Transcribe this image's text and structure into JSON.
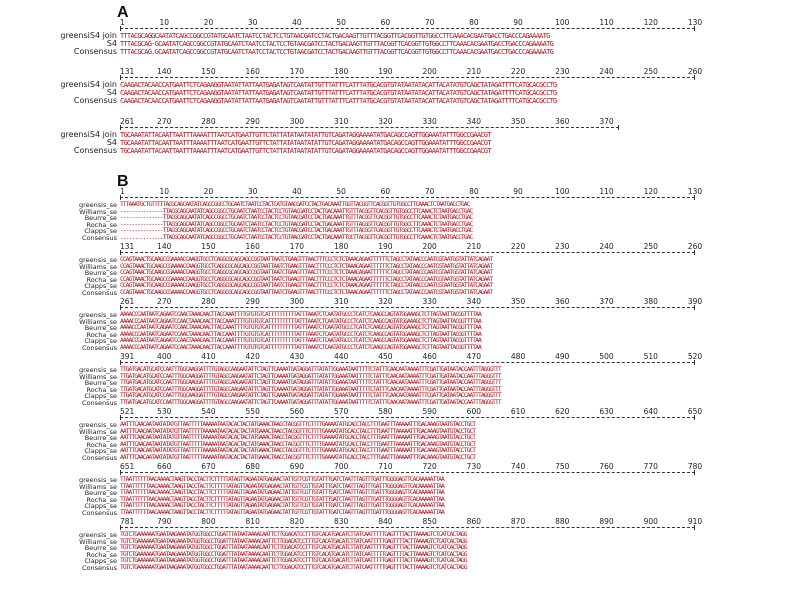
{
  "panels": [
    {
      "label": "A",
      "blocks": [
        {
          "ticks": [
            "1",
            "10",
            "20",
            "30",
            "40",
            "50",
            "60",
            "70",
            "80",
            "90",
            "100",
            "110",
            "120",
            "130"
          ],
          "rows": [
            {
              "name": "greensiS4 join",
              "seq": "TTTACGCAGGCAATATCAGCCGGCCGTATGCAATCTAATCCTACTCCTGTAACGATCCTACTGACAAGTTGTTTACGGTTCACGGTTGTGGCCTTCAAACACGAATGACCTGACCCAGAAAATG"
            },
            {
              "name": "S4",
              "seq": "TTTACGCAG-GCAATATCAGCCGGCCGTATGCAATCTAATCCTACTCCTGTAACGATCCTACTGACAAGTTGTTTACGGTTCACGGTTGTGGCCTTCAAACACGAATGACCTGACCCAGAAAATG"
            },
            {
              "name": "Consensus",
              "seq": "TTTACGCAG.GCAATATCAGCCGGCCGTATGCAATCTAATCCTACTCCTGTAACGATCCTACTGACAAGTTGTTTACGGTTCACGGTTGTGGCCTTCAAACACGAATGACCTGACCCAGAAAATG"
            }
          ]
        },
        {
          "ticks": [
            "131",
            "140",
            "150",
            "160",
            "170",
            "180",
            "190",
            "200",
            "210",
            "220",
            "230",
            "240",
            "250",
            "260"
          ],
          "rows": [
            {
              "name": "greensiS4 join",
              "seq": "CAAGACTACAACCATGAATTCTCAGAAGGTAATATTATTAATGAGATAGTCAATATTGTTTATTTCATTTATGCACGTGTATAATATACATTACATATGTCAGCTATAGATTTTCATGCACGCCTG"
            },
            {
              "name": "S4",
              "seq": "CAAGACTACAACCATGAATTCTCAGAAGGTAATATTATTAATGAGATAGTCAATATTGTTTATTTCATTTATGCACGTGTATAATATACATTACATATGTCAGCTATAGATTTTCATGCACGCCTG"
            },
            {
              "name": "Consensus",
              "seq": "CAAGACTACAACCATGAATTCTCAGAAGGTAATATTATTAATGAGATAGTCAATATTGTTTATTTCATTTATGCACGTGTATAATATACATTACATATGTCAGCTATAGATTTTCATGCACGCCTG"
            }
          ]
        },
        {
          "ticks": [
            "261",
            "270",
            "280",
            "290",
            "300",
            "310",
            "320",
            "330",
            "340",
            "350",
            "360",
            "370"
          ],
          "rows": [
            {
              "name": "greensiS4 join",
              "seq": "TGCAAATATTACAATTAATTTAAAATTTAATCATGAATTGTTCTATTATATAATATATTGTCAGATAGGAAAATATGACAGCCAGTTGGAAATATTTGGCCGAACGT"
            },
            {
              "name": "S4",
              "seq": "TGCAAATATTACAATTAATTTAAAATTTAATCATGAATTGTTCTATTATATAATATATTGTCAGATAGGAAAATATGACAGCCAGTTGGAAATATTTGGCCGAACGT"
            },
            {
              "name": "Consensus",
              "seq": "TGCAAATATTACAATTAATTTAAAATTTAATCATGAATTGTTCTATTATATAATATATTGTCAGATAGGAAAATATGACAGCCAGTTGGAAATATTTGGCCGAACGT"
            }
          ]
        }
      ]
    },
    {
      "label": "B",
      "blocks": [
        {
          "ticks": [
            "1",
            "10",
            "20",
            "30",
            "40",
            "50",
            "60",
            "70",
            "80",
            "90",
            "100",
            "110",
            "120",
            "130"
          ],
          "rows": [
            {
              "name": "greensis_se",
              "seq": "TTTAAATGCTGTTTTTACGCAGCAATATCAGCCGGCCTGCAATCTAATCCTACTCATGTAACGATCCTACTGACAAATTGGTTACGGTTCACGGTTGTGGCCTTCAAACTCTAATGACCTGAC"
            },
            {
              "name": "Williams_se",
              "seq": "---------------TTACGCAGCAATATCAGCCGGCCTGCAATCTAATCCTACTCCTGTAACGATCCTACTGACAAATTGTTTACGGTTCACGGTTGTGGCCTTCAAACTCTAATGACCTGAC"
            },
            {
              "name": "Beurre_se",
              "seq": "---------------TTACGCAGCAATATCAGCCGGCCTGCAATCTAATCCTACTCCTGTAACGATCCTACTGACAAATTGTTTACGGTTCACGGTTGTGGCCTTCAAACTCTAATGACCTGAC"
            },
            {
              "name": "Rocha_se",
              "seq": "---------------TTACGCAGCAATATCAGCCGGCCTGCAATCTAATCCTACTCCTGTAACGATCCTACTGACAAATTGTTTACGGTTCACGGTTGTGGCCTTCAAACTCTAATGACCTGAC"
            },
            {
              "name": "Clapps_se",
              "seq": "---------------TTACGCAGCAATATCAGCCGGCCTGCAATCTAATCCTACTCCTGTAACGATCCTACTGACAAATTGTTTACGGTTCACGGTTGTGGCCTTCAAACTCTAATGACCTGAC"
            },
            {
              "name": "Consensus",
              "seq": "...............TTACGCAGCAATATCAGCCGGCCTGCAATCTAATCCTACTCcTGTAACGATCCTACTGACAAATTGtTTACGGTTCACGGTTGTGGCCTTCAAACTCTAATGACCTGAC"
            }
          ]
        },
        {
          "ticks": [
            "131",
            "140",
            "150",
            "160",
            "170",
            "180",
            "190",
            "200",
            "210",
            "220",
            "230",
            "240",
            "250",
            "260"
          ],
          "rows": [
            {
              "name": "greensis_se",
              "seq": "CCAGTAAACTGCAAGCCGAAAACCAAGGTGCCTCAGGCGCAGCAGCCGGTAATTAATCTGAAGTTTAACTTTCCCTCTCTAAACAGAATTTTTTCTAGCCTATAACCCAATCGTAATGGTATTATCAGAAT"
            },
            {
              "name": "Williams_se",
              "seq": "CCAGTAAACTGCAAGCCGAAAACCAAGGTGCCTCAGGCGCAGCAGCCGGTAATTAATCTGAAGTTTAACTTTCCCTCTCTAAACAGAATTTTTTCTAGCCTATAACCCAATCGTAATGGTATTATCAGAAT"
            },
            {
              "name": "Beurre_se",
              "seq": "CCAGTAAACTGCAAGCCGAAAACCAAGGTGCCTCAGGCGCAGCAGCCGGTAATTAATCTGAAGTTTAACTTTCCCTCTCTAAACAGAATTTTTTCTAGCCTATAACCCAATCGTAATGGTATTATCAGAAT"
            },
            {
              "name": "Rocha_se",
              "seq": "CCAGTAAACTGCAAGCCGAAAACCAAGGTGCCTCAGGCGCAGCAGCCGGTAATTAATCTGAAGTTTAACTTTCCCTCTCTAAACAGAATTTTTTCTAGCCTATAACCCAATCGTAATGGTATTATCAGAAT"
            },
            {
              "name": "Clapps_se",
              "seq": "CCAGTAAACTGCAAGCCGAAAACCAAGGTGCCTCAGGCGCAGCAGCCGGTAATTAATCTGAAGTTTAACTTTCCCTCTCTAAACAGAATTTTTTCTAGCCTATAACCCAATCGTAATGGTATTATCAGAAT"
            },
            {
              "name": "Consensus",
              "seq": "CCAGTAAACTGCAAGCCGAAAACCAAGGTGCCTCAGGCGCAGCAGCCGGTAATTAATCTGAAGTTTAACTTTCCCTCTCTAAACAGAATTTTTTCTAGCCTATAACCCAATCGTAATGGTATTATCAGAAT"
            }
          ]
        },
        {
          "ticks": [
            "261",
            "270",
            "280",
            "290",
            "300",
            "310",
            "320",
            "330",
            "340",
            "350",
            "360",
            "370",
            "380",
            "390"
          ],
          "rows": [
            {
              "name": "greensis_se",
              "seq": "AAAACCCAATAATCAGAATCCAACTAAACAACTTACCAAATTTTGTGTGTCATTTTTTTTTTATTTAAATCTCAATATGCCCTCATCTCAAGCCAGTATGGAAAGCTCTTAGTAATTACGGTTTTAA"
            },
            {
              "name": "Williams_se",
              "seq": "AAAACCCAATAATCAGAATCCAACTAAACAACTTACCAAATTTTGTGTGTCATTTTTTTTTTATTTAAATCTCAATATGCCCTCATCTCAAGCCAGTATGGAAAGCTCTTAGTAATTACGGTTTTAA"
            },
            {
              "name": "Beurre_se",
              "seq": "AAAACCCAATAATCAGAATCCAACTAAACAACTTACCAAATTTTGTGTGTCATTTTTTTTTTATTTAAATCTCAATATGCCCTCATCTCAAGCCAGTATGGAAAGCTCTTAGTAATTACGGTTTTAA"
            },
            {
              "name": "Rocha_se",
              "seq": "AAAACCCAATAATCAGAATCCAACTAAACAACTTACCAAATTTTGTGTGTCATTTTTTTTTTATTTAAATCTCAATATGCCCTCATCTCAAGCCAGTATGGAAAGCTCTTAGTAATTACGGTTTTAA"
            },
            {
              "name": "Clapps_se",
              "seq": "AAAACCCAATAATCAGAATCCAACTAAACAACTTACCAAATTTTGTGTGTCATTTTTTTTTTATTTAAATCTCAATATGCCCTCATCTCAAGCCAGTATGGAAAGCTCTTAGTAATTACGGTTTTAA"
            },
            {
              "name": "Consensus",
              "seq": "AAAACCCAATAATCAGAATCCAACTAAACAACTTACCAAATTTTGTGTGTCATTTTTTTTTTATTTAAATCTCAATATGCCCTCATCTCAAGCCAGTATGGAAAGCTCTTAGTAATTACGGTTTTAA"
            }
          ]
        },
        {
          "ticks": [
            "391",
            "400",
            "410",
            "420",
            "430",
            "440",
            "450",
            "460",
            "470",
            "480",
            "490",
            "500",
            "510",
            "520"
          ],
          "rows": [
            {
              "name": "greensis_se",
              "seq": "TTGATGACATGCATCCAATTTGGCAAGGATTTTGTAGCCAAGAATATTCTAGTTCAAAATGATAGGATTTATATTGGAAATAATTTTTCTATTTCAACAATAAAATTTCGATTGATAATACCAATTTAGGGTTT"
            },
            {
              "name": "Williams_se",
              "seq": "TTGATGACATGCATCCAATTTGGCAAGGATTTTGTAGCCAAGAATATTCTAGTTCAAAATGATAGGATTTATATTGGAAATAATTTTTCTATTTCAACAATAAAATTTCGATTGATAATACCAATTTAGGGTTT"
            },
            {
              "name": "Beurre_se",
              "seq": "TTGATGACATGCATCCAATTTGGCAAGGATTTTGTAGCCAAGAATATTCTAGTTCAAAATGATAGGATTTATATTGGAAATAATTTTTCTATTTCAACAATAAAATTTCGATTGATAATACCAATTTAGGGTTT"
            },
            {
              "name": "Rocha_se",
              "seq": "TTGATGACATGCATCCAATTTGGCAAGGATTTTGTAGCCAAGAATATTCTAGTTCAAAATGATAGGATTTATATTGGAAATAATTTTTCTATTTCAACAATAAAATTTCGATTGATAATACCAATTTAGGGTTT"
            },
            {
              "name": "Clapps_se",
              "seq": "TTGATGACATGCATCCAATTTGGCAAGGATTTTGTAGCCAAGAATATTCTAGTTCAAAATGATAGGATTTATATTGGAAATAATTTTTCTATTTCAACAATAAAATTTCGATTGATAATACCAATTTAGGGTTT"
            },
            {
              "name": "Consensus",
              "seq": "TTGATGACATGCATCCAATTTGGCAAGGATTTTGTAGCCAAGAATATTCTAGTTCAAAATGATAGGATTTATATTGGAAATAATTTTTCTATTTCAACAATAAAATTTCGATTGATAATACCAATTTAGGGTTT"
            }
          ]
        },
        {
          "ticks": [
            "521",
            "530",
            "540",
            "550",
            "560",
            "570",
            "580",
            "590",
            "600",
            "610",
            "620",
            "630",
            "640",
            "650"
          ],
          "rows": [
            {
              "name": "greensis_se",
              "seq": "AATTTCAACAATAATATATGTTAATTTTTAAAAATAATACACTACTATGAAACTAACCTACGGTTTCTTTTGAAAATATGCACCTACCTTTGAATTTAAAAATTTGACAAAGTAATGTACCTGCT"
            },
            {
              "name": "Williams_se",
              "seq": "AATTTCAACAATAATATATGTTAATTTTTAAAAATAATACACTACTATGAAACTAACCTACGGTTTCTTTTGAAAATATGCACCTACCTTTGAATTTAAAAATTTGACAAAGTAATGTACCTGCT"
            },
            {
              "name": "Beurre_se",
              "seq": "AATTTCAACAATAATATATGTTAATTTTTAAAAATAATACACTACTATGAAACTAACCTACGGTTTCTTTTGAAAATATGCACCTACCTTTGAATTTAAAAATTTGACAAAGTAATGTACCTGCT"
            },
            {
              "name": "Rocha_se",
              "seq": "AATTTCAACAATAATATATGTTAATTTTTAAAAATAATACACTACTATGAAACTAACCTACGGTTTCTTTTGAAAATATGCACCTACCTTTGAATTTAAAAATTTGACAAAGTAATGTACCTGCT"
            },
            {
              "name": "Clapps_se",
              "seq": "AATTTCAACAATAATATATGTTAATTTTTAAAAATAATACACTACTATGAAACTAACCTACGGTTTCTTTTGAAAATATGCACCTACCTTTGAATTTAAAAATTTGACAAAGTAATGTACCTGCT"
            },
            {
              "name": "Consensus",
              "seq": "AATTTCAACAATAATATATGTTAATTTTTAAAAATAATACACTACTATGAAACTAACCTACGGTTTCTTTTGAAAATATGCACCTACCTTTGAATTTAAAAATTTGACAAAGTAATGTACCTGCT"
            }
          ]
        },
        {
          "ticks": [
            "651",
            "660",
            "670",
            "680",
            "690",
            "700",
            "710",
            "720",
            "730",
            "740",
            "750",
            "760",
            "770",
            "780"
          ],
          "rows": [
            {
              "name": "greensis_se",
              "seq": "TTAATTTTTTAACAAAACTAAGTTACCTACTTCTTTTTATAGTTAGAATATGAGAACTATTGTTCGTTGTATTTGATCTAATTTAGTTTGATTTGGGGAGTTCACAAAAATTAA"
            },
            {
              "name": "Williams_se",
              "seq": "TTAATTTTTTAACAAAACTAAGTTACCTACTTCTTTTTATAGTTAGAATATGAGAACTATTGTTCGTTGTATTTGATCTAATTTAGTTTGATTTGGGGAGTTCACAAAAATTAA"
            },
            {
              "name": "Beurre_se",
              "seq": "TTAATTTTTTAACAAAACTAAGTTACCTACTTCTTTTTATAGTTAGAATATGAGAACTATTGTTCGTTGTATTTGATCTAATTTAGTTTGATTTGGGGAGTTCACAAAAATTAA"
            },
            {
              "name": "Rocha_se",
              "seq": "TTAATTTTTTAACAAAACTAAGTTACCTACTTCTTTTTATAGTTAGAATATGAGAACTATTGTTCGTTGTATTTGATCTAATTTAGTTTGATTTGGGGAGTTCACAAAAATTAA"
            },
            {
              "name": "Clapps_se",
              "seq": "TTAATTTTTTAACAAAACTAAGTTACCTACTTCTTTTTATAGTTAGAATATGAGAACTATTGTTCGTTGTATTTGATCTAATTTAGTTTGATTTGGGGAGTTCACAAAAATTAA"
            },
            {
              "name": "Consensus",
              "seq": "TTAATTTTTTAACAAAACTAAGTTACCTACTTCTTTTTATAGTTAGAATATGAGAACTATTGTTCGTTGTATTTGATCTAATTTAGTTTGATTTGGGGAGTTCACAAAAATTAA"
            }
          ]
        },
        {
          "ticks": [
            "781",
            "790",
            "800",
            "810",
            "820",
            "830",
            "840",
            "850",
            "860",
            "870",
            "880",
            "890",
            "900",
            "910"
          ],
          "rows": [
            {
              "name": "greensis_se",
              "seq": "TGTCTGAAAAAATGAATAAGAAATATGGTGGCCTGGATTTATAATAAAACAATTCTTGGACATCCTTTGTCACATGACATCTTATCAATTTTTGAGTTTTACTTAAAAGTCTCATCACTAGG"
            },
            {
              "name": "Williams_se",
              "seq": "TGTCTGAAAAAATGAATAAGAAATATGGTGGCCTGGATTTATAATAAAACAATTCTTGGACATCCTTTGTCACATGACATCTTATCAATTTTTGAGTTTTACTTAAAAGTCTCATCACTAGG"
            },
            {
              "name": "Beurre_se",
              "seq": "TGTCTGAAAAAATGAATAAGAAATATGGTGGCCTGGATTTATAATAAAACAATTCTTGGACATCCTTTGTCACATGACATCTTATCAATTTTTGAGTTTTACTTAAAAGTCTCATCACTAGG"
            },
            {
              "name": "Rocha_se",
              "seq": "TGTCTGAAAAAATGAATAAGAAATATGGTGGCCTGGATTTATAATAAAACAATTCTTGGACATCCTTTGTCACATGACATCTTATCAATTTTTGAGTTTTACTTAAAAGTCTCATCACTAGG"
            },
            {
              "name": "Clapps_se",
              "seq": "TGTCTGAAAAAATGAATAAGAAATATGGTGGCCTGGATTTATAATAAAACAATTCTTGGACATCCTTTGTCACATGACATCTTATCAATTTTTGAGTTTTACTTAAAAGTCTCATCACTAGG"
            },
            {
              "name": "Consensus",
              "seq": "TGTCTGAAAAAATGAATAAGAAATATGGTGGCCTGGATTTATAATAAAACAATTCTTGGACATCCTTTGTCACATGACATCTTATCAATTTTTGAGTTTTACTTAAAAGTCTCATCACTAGG"
            }
          ]
        }
      ]
    }
  ],
  "colors": {
    "match": "#b5121b",
    "mismatch": "#1d3fbf",
    "unaligned": "#111111"
  }
}
